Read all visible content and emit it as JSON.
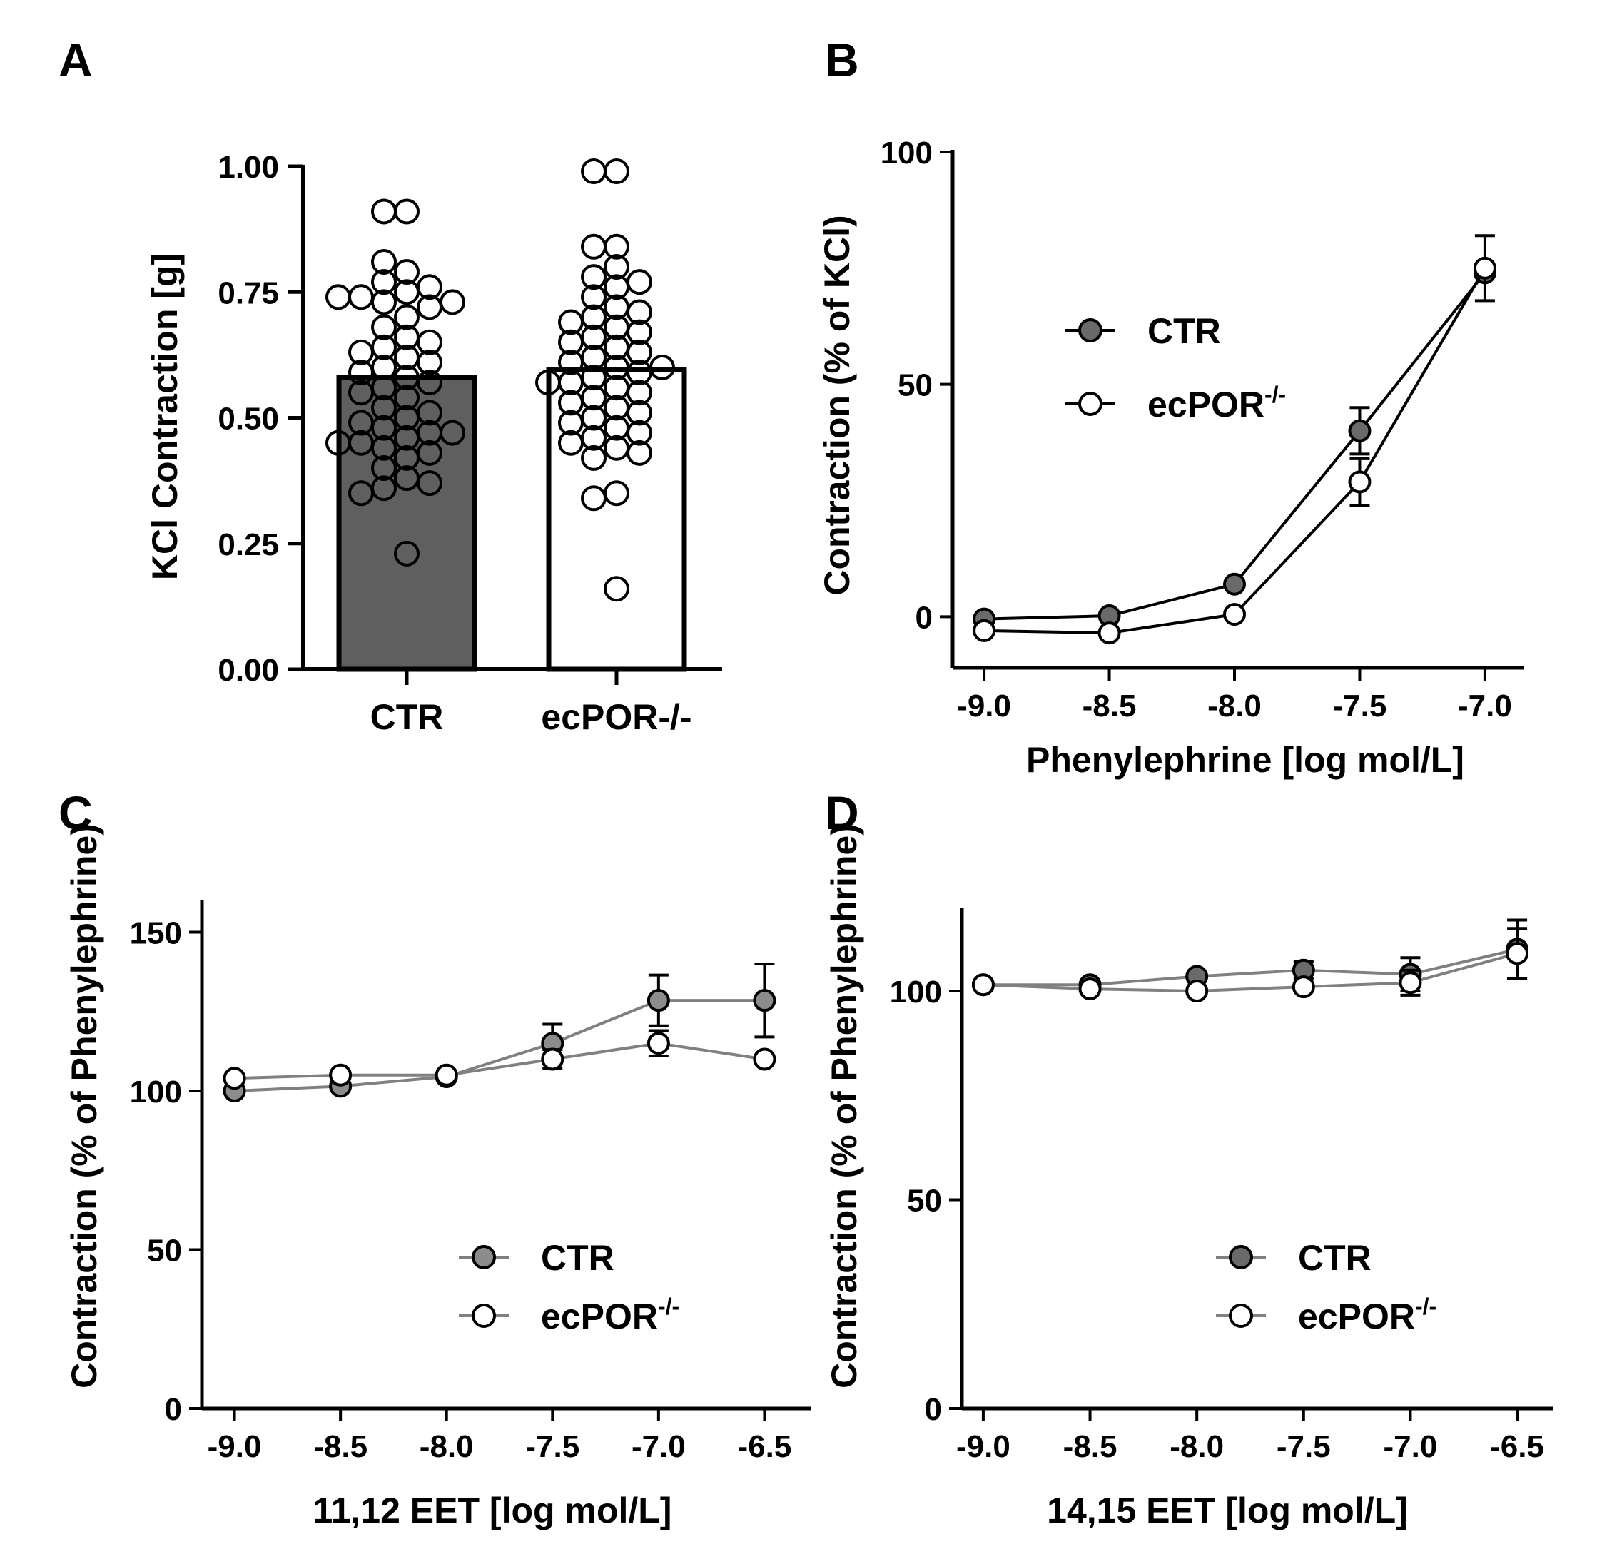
{
  "colors": {
    "ctr_bar": "#5f5f5f",
    "ctr_marker_dark": "#6a6a6a",
    "ctr_marker_light": "#8c8c8c",
    "open_marker": "#ffffff",
    "line_dark": "#000000",
    "line_gray": "#808080"
  },
  "chart_data": [
    {
      "id": "A",
      "panel": "A",
      "type": "bar",
      "categories": [
        "CTR",
        "ecPOR-/-"
      ],
      "values": [
        0.58,
        0.595
      ],
      "ylabel": "KCl Contraction [g]",
      "xlabel": "",
      "ylim": [
        0,
        1
      ],
      "yticks": [
        0,
        0.25,
        0.5,
        0.75,
        1.0
      ],
      "ytick_labels": [
        "0.00",
        "0.25",
        "0.50",
        "0.75",
        "1.00"
      ],
      "individual_points": [
        [
          0.91,
          0.91,
          0.79,
          0.81,
          0.77,
          0.76,
          0.75,
          0.74,
          0.73,
          0.73,
          0.74,
          0.72,
          0.7,
          0.68,
          0.66,
          0.65,
          0.64,
          0.63,
          0.62,
          0.61,
          0.6,
          0.59,
          0.58,
          0.57,
          0.56,
          0.55,
          0.54,
          0.52,
          0.51,
          0.5,
          0.49,
          0.48,
          0.47,
          0.47,
          0.46,
          0.45,
          0.45,
          0.44,
          0.43,
          0.42,
          0.4,
          0.38,
          0.37,
          0.36,
          0.35,
          0.23
        ],
        [
          0.99,
          0.99,
          0.84,
          0.84,
          0.8,
          0.78,
          0.77,
          0.76,
          0.74,
          0.72,
          0.71,
          0.7,
          0.69,
          0.68,
          0.67,
          0.66,
          0.65,
          0.64,
          0.63,
          0.62,
          0.61,
          0.6,
          0.6,
          0.59,
          0.58,
          0.57,
          0.57,
          0.56,
          0.55,
          0.54,
          0.53,
          0.52,
          0.51,
          0.5,
          0.49,
          0.48,
          0.47,
          0.46,
          0.45,
          0.44,
          0.43,
          0.42,
          0.35,
          0.34,
          0.16
        ]
      ]
    },
    {
      "id": "B",
      "panel": "B",
      "type": "line",
      "xlabel": "Phenylephrine [log mol/L]",
      "ylabel": "Contraction (% of KCl)",
      "x": [
        -9.0,
        -8.5,
        -8.0,
        -7.5,
        -7.0
      ],
      "xlim": [
        -9.1,
        -6.9
      ],
      "ylim": [
        -11,
        100
      ],
      "xticks": [
        -9.0,
        -8.5,
        -8.0,
        -7.5,
        -7.0
      ],
      "xtick_labels": [
        "-9.0",
        "-8.5",
        "-8.0",
        "-7.5",
        "-7.0"
      ],
      "yticks": [
        0,
        50,
        100
      ],
      "ytick_labels": [
        "0",
        "50",
        "100"
      ],
      "line_color": "line_dark",
      "series": [
        {
          "name": "CTR",
          "marker": "filled",
          "fill": "ctr_marker_dark",
          "values": [
            -0.5,
            0.2,
            7,
            40,
            74
          ],
          "errors": [
            0,
            0,
            0,
            5,
            0
          ]
        },
        {
          "name": "ecPOR",
          "name_superscript": "-/-",
          "marker": "open",
          "values": [
            -3,
            -3.5,
            0.5,
            29,
            75
          ],
          "errors": [
            0,
            0,
            0,
            5,
            7
          ]
        }
      ],
      "legend": {
        "position": "upper-left"
      }
    },
    {
      "id": "C",
      "panel": "C",
      "type": "line",
      "xlabel": "11,12  EET [log mol/L]",
      "ylabel": "Contraction (% of  Phenylephrine)",
      "x": [
        -9.0,
        -8.5,
        -8.0,
        -7.5,
        -7.0,
        -6.5
      ],
      "xlim": [
        -9.15,
        -6.35
      ],
      "ylim": [
        0,
        160
      ],
      "xticks": [
        -9.0,
        -8.5,
        -8.0,
        -7.5,
        -7.0,
        -6.5
      ],
      "xtick_labels": [
        "-9.0",
        "-8.5",
        "-8.0",
        "-7.5",
        "-7.0",
        "-6.5"
      ],
      "yticks": [
        0,
        50,
        100,
        150
      ],
      "ytick_labels": [
        "0",
        "50",
        "100",
        "150"
      ],
      "line_color": "line_gray",
      "series": [
        {
          "name": "CTR",
          "marker": "filled",
          "fill": "ctr_marker_light",
          "values": [
            100,
            101.5,
            104.5,
            115,
            128.5,
            128.5
          ],
          "errors": [
            0,
            0,
            0,
            6,
            8,
            11.5
          ]
        },
        {
          "name": "ecPOR",
          "name_superscript": "-/-",
          "marker": "open",
          "values": [
            104,
            105,
            105,
            110,
            115,
            110
          ],
          "errors": [
            0,
            0,
            0,
            3,
            4,
            0
          ]
        }
      ],
      "legend": {
        "position": "lower-right"
      }
    },
    {
      "id": "D",
      "panel": "D",
      "type": "line",
      "xlabel": "14,15  EET [log mol/L]",
      "ylabel": "Contraction (% of  Phenylephrine)",
      "x": [
        -9.0,
        -8.5,
        -8.0,
        -7.5,
        -7.0,
        -6.5
      ],
      "xlim": [
        -9.1,
        -6.4
      ],
      "ylim": [
        0,
        120
      ],
      "xticks": [
        -9.0,
        -8.5,
        -8.0,
        -7.5,
        -7.0,
        -6.5
      ],
      "xtick_labels": [
        "-9.0",
        "-8.5",
        "-8.0",
        "-7.5",
        "-7.0",
        "-6.5"
      ],
      "yticks": [
        0,
        50,
        100
      ],
      "ytick_labels": [
        "0",
        "50",
        "100"
      ],
      "line_color": "line_gray",
      "series": [
        {
          "name": "CTR",
          "marker": "filled",
          "fill": "ctr_marker_dark",
          "values": [
            101.5,
            101.5,
            103.5,
            105,
            104,
            110
          ],
          "errors": [
            0,
            0,
            0,
            2,
            4,
            7
          ]
        },
        {
          "name": "ecPOR",
          "name_superscript": "-/-",
          "marker": "open",
          "values": [
            101.5,
            100.5,
            100,
            101,
            102,
            109
          ],
          "errors": [
            0,
            0,
            0,
            0,
            3,
            6
          ]
        }
      ],
      "legend": {
        "position": "lower-right"
      }
    }
  ]
}
